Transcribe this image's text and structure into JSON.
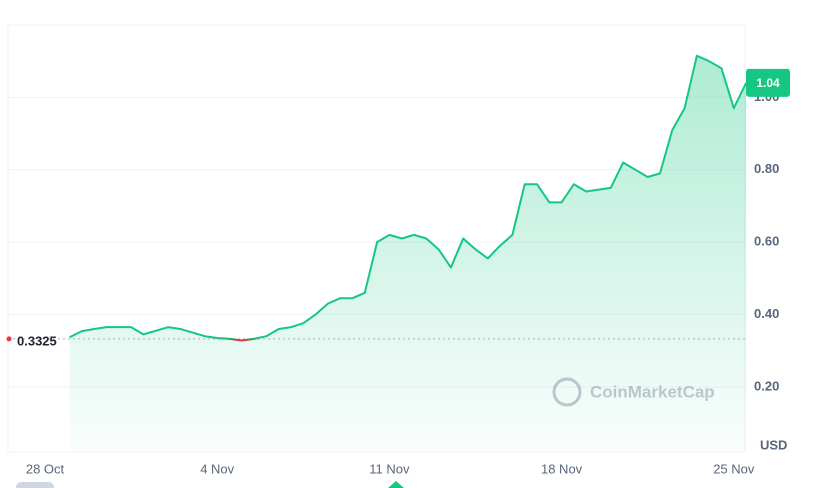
{
  "chart_data": {
    "type": "line",
    "categories": [
      "28 Oct",
      null,
      null,
      null,
      null,
      null,
      null,
      null,
      null,
      null,
      null,
      null,
      null,
      null,
      "4 Nov",
      null,
      null,
      null,
      null,
      null,
      null,
      null,
      null,
      null,
      null,
      null,
      null,
      null,
      "11 Nov",
      null,
      null,
      null,
      null,
      null,
      null,
      null,
      null,
      null,
      null,
      null,
      null,
      null,
      "18 Nov",
      null,
      null,
      null,
      null,
      null,
      null,
      null,
      null,
      null,
      null,
      null,
      null,
      null,
      "25 Nov",
      null
    ],
    "values": [
      null,
      null,
      0.337,
      0.354,
      0.36,
      0.365,
      0.365,
      0.365,
      0.345,
      0.355,
      0.365,
      0.36,
      0.35,
      0.34,
      0.335,
      0.333,
      0.328,
      0.333,
      0.34,
      0.36,
      0.365,
      0.376,
      0.4,
      0.43,
      0.445,
      0.445,
      0.46,
      0.6,
      0.62,
      0.61,
      0.62,
      0.61,
      0.58,
      0.53,
      0.61,
      0.58,
      0.555,
      0.59,
      0.62,
      0.76,
      0.76,
      0.71,
      0.71,
      0.76,
      0.74,
      0.745,
      0.75,
      0.82,
      0.8,
      0.78,
      0.79,
      0.91,
      0.97,
      1.115,
      1.1,
      1.08,
      0.97,
      1.04
    ],
    "color": "#16c784",
    "down_color": "#ea3943",
    "reference_value": 0.3325,
    "ylim": [
      0.02,
      1.2
    ],
    "yticks": [
      {
        "value": 0.2,
        "label": "0.20"
      },
      {
        "value": 0.4,
        "label": "0.40"
      },
      {
        "value": 0.6,
        "label": "0.60"
      },
      {
        "value": 0.8,
        "label": "0.80"
      },
      {
        "value": 1.0,
        "label": "1.00"
      }
    ],
    "y_axis_label": "USD",
    "watermark": "CoinMarketCap",
    "grid": true
  }
}
